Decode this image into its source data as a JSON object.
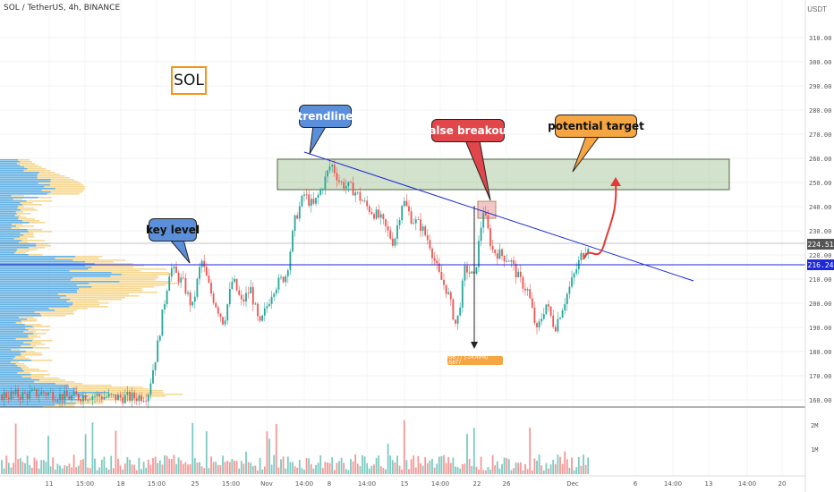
{
  "header": {
    "title": "SOL / TetherUS, 4h, BINANCE"
  },
  "badge": {
    "label": "SOL"
  },
  "annotations": {
    "trendline": "trendline",
    "key_level": "key level",
    "false_breakout": "false breakout",
    "potential_target": "potential target"
  },
  "measure_label": "-56.77 (-24.49%) -5877",
  "price_axis": {
    "currency": "USDT",
    "ticks": [
      "310.00",
      "300.00",
      "290.00",
      "280.00",
      "270.00",
      "260.00",
      "250.00",
      "240.00",
      "230.00",
      "220.00",
      "210.00",
      "200.00",
      "190.00",
      "180.00",
      "170.00",
      "160.00"
    ],
    "current_price": "224.51",
    "key_level_price": "216.24"
  },
  "volume_axis": {
    "ticks": [
      "2M",
      "1M"
    ]
  },
  "time_axis": {
    "ticks": [
      "11",
      "15:00",
      "18",
      "15:00",
      "25",
      "15:00",
      "Nov",
      "14:00",
      "8",
      "14:00",
      "15",
      "14:00",
      "22",
      "26",
      "Dec",
      "6",
      "14:00",
      "13",
      "14:00",
      "20"
    ]
  },
  "colors": {
    "candle_up": "#26a69a",
    "candle_down": "#ef5350",
    "trendline": "#1e28d8",
    "key_level_line": "#1e28d8",
    "resistance_zone": "#9bbf8f",
    "profile_blue": "#4aa3df",
    "profile_yellow": "#f5d487",
    "arrow_red": "#e53935"
  },
  "chart_data": {
    "type": "candlestick",
    "title": "SOL / TetherUS, 4h, BINANCE",
    "ylim": [
      155,
      320
    ],
    "x_ticks": [
      "11",
      "15:00",
      "18",
      "15:00",
      "25",
      "15:00",
      "Nov",
      "14:00",
      "8",
      "14:00",
      "15",
      "14:00",
      "22",
      "26",
      "Dec",
      "6",
      "14:00",
      "13",
      "14:00",
      "20"
    ],
    "price_path": [
      [
        0,
        162
      ],
      [
        25,
        162
      ],
      [
        50,
        163
      ],
      [
        75,
        161
      ],
      [
        100,
        162
      ],
      [
        125,
        161
      ],
      [
        150,
        161
      ],
      [
        165,
        162
      ],
      [
        175,
        180
      ],
      [
        190,
        215
      ],
      [
        205,
        208
      ],
      [
        215,
        198
      ],
      [
        225,
        218
      ],
      [
        235,
        205
      ],
      [
        250,
        192
      ],
      [
        260,
        210
      ],
      [
        270,
        200
      ],
      [
        280,
        206
      ],
      [
        290,
        190
      ],
      [
        305,
        206
      ],
      [
        320,
        212
      ],
      [
        330,
        235
      ],
      [
        340,
        245
      ],
      [
        350,
        240
      ],
      [
        360,
        248
      ],
      [
        370,
        258
      ],
      [
        380,
        250
      ],
      [
        395,
        247
      ],
      [
        410,
        240
      ],
      [
        425,
        235
      ],
      [
        440,
        225
      ],
      [
        450,
        243
      ],
      [
        460,
        235
      ],
      [
        470,
        232
      ],
      [
        480,
        225
      ],
      [
        490,
        212
      ],
      [
        500,
        205
      ],
      [
        510,
        190
      ],
      [
        520,
        215
      ],
      [
        530,
        210
      ],
      [
        540,
        239
      ],
      [
        550,
        222
      ],
      [
        560,
        220
      ],
      [
        570,
        218
      ],
      [
        580,
        210
      ],
      [
        590,
        205
      ],
      [
        600,
        188
      ],
      [
        610,
        200
      ],
      [
        620,
        190
      ],
      [
        630,
        200
      ],
      [
        640,
        210
      ],
      [
        650,
        220
      ],
      [
        658,
        225
      ]
    ],
    "levels": {
      "current": 224.51,
      "key_level": 216.24,
      "resistance_zone": [
        247,
        260
      ],
      "trendline_start": 262,
      "trendline_end": 209
    },
    "measure": {
      "from": 241,
      "to": 184,
      "label": "-56.77 (-24.49%) -5877"
    },
    "target_zone": [
      247,
      260
    ]
  }
}
